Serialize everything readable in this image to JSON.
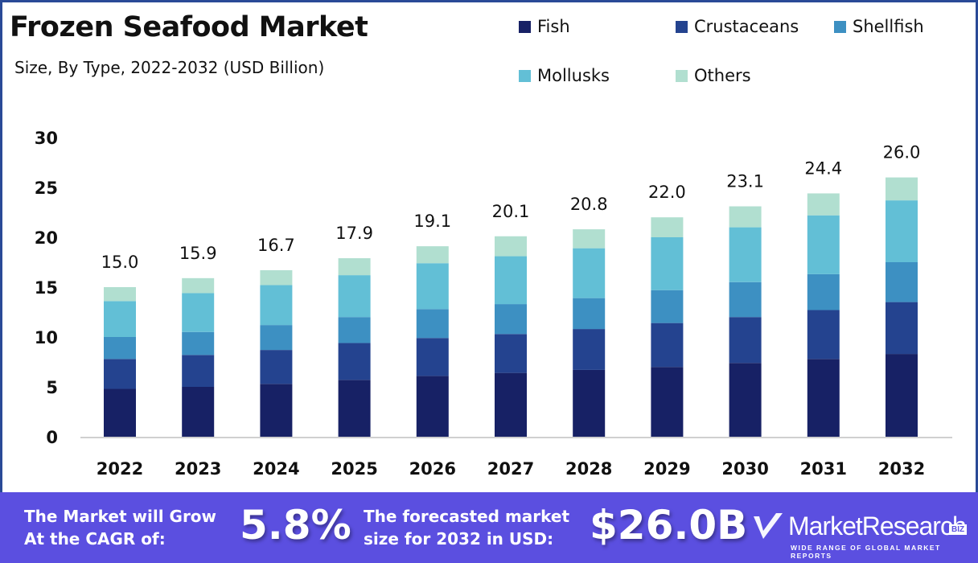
{
  "header": {
    "title": "Frozen Seafood Market",
    "subtitle": "Size, By Type, 2022-2032 (USD Billion)"
  },
  "legend": [
    {
      "label": "Fish",
      "color": "#172165"
    },
    {
      "label": "Crustaceans",
      "color": "#24438f"
    },
    {
      "label": "Shellfish",
      "color": "#3d90c2"
    },
    {
      "label": "Mollusks",
      "color": "#62bfd6"
    },
    {
      "label": "Others",
      "color": "#b1dfd0"
    }
  ],
  "chart_data": {
    "type": "bar",
    "stacked": true,
    "title": "Frozen Seafood Market",
    "subtitle": "Size, By Type, 2022-2032 (USD Billion)",
    "xlabel": "",
    "ylabel": "",
    "ylim": [
      0,
      30
    ],
    "yticks": [
      0,
      5,
      10,
      15,
      20,
      25,
      30
    ],
    "grid": false,
    "legend_position": "top-right",
    "categories": [
      "2022",
      "2023",
      "2024",
      "2025",
      "2026",
      "2027",
      "2028",
      "2029",
      "2030",
      "2031",
      "2032"
    ],
    "series": [
      {
        "name": "Fish",
        "color": "#172165",
        "values": [
          4.8,
          5.0,
          5.3,
          5.7,
          6.1,
          6.4,
          6.7,
          7.0,
          7.4,
          7.8,
          8.3
        ]
      },
      {
        "name": "Crustaceans",
        "color": "#24438f",
        "values": [
          3.0,
          3.2,
          3.4,
          3.7,
          3.8,
          3.9,
          4.1,
          4.4,
          4.6,
          4.9,
          5.2
        ]
      },
      {
        "name": "Shellfish",
        "color": "#3d90c2",
        "values": [
          2.2,
          2.3,
          2.5,
          2.6,
          2.9,
          3.0,
          3.1,
          3.3,
          3.5,
          3.6,
          4.0
        ]
      },
      {
        "name": "Mollusks",
        "color": "#62bfd6",
        "values": [
          3.6,
          3.9,
          4.0,
          4.2,
          4.6,
          4.8,
          5.0,
          5.3,
          5.5,
          5.9,
          6.2
        ]
      },
      {
        "name": "Others",
        "color": "#b1dfd0",
        "values": [
          1.4,
          1.5,
          1.5,
          1.7,
          1.7,
          2.0,
          1.9,
          2.0,
          2.1,
          2.2,
          2.3
        ]
      }
    ],
    "totals": [
      15.0,
      15.9,
      16.7,
      17.9,
      19.1,
      20.1,
      20.8,
      22.0,
      23.1,
      24.4,
      26.0
    ],
    "total_labels": [
      "15.0",
      "15.9",
      "16.7",
      "17.9",
      "19.1",
      "20.1",
      "20.8",
      "22.0",
      "23.1",
      "24.4",
      "26.0"
    ]
  },
  "banner": {
    "cagr_text_line1": "The Market will Grow",
    "cagr_text_line2": "At the CAGR of:",
    "cagr_value": "5.8%",
    "forecast_text_line1": "The forecasted market",
    "forecast_text_line2": "size for 2032 in USD:",
    "forecast_value": "$26.0B",
    "logo_name": "MarketResearch",
    "logo_badge": "BIZ",
    "logo_tagline": "WIDE RANGE OF GLOBAL MARKET REPORTS",
    "bg_color": "#5b4fe0"
  }
}
